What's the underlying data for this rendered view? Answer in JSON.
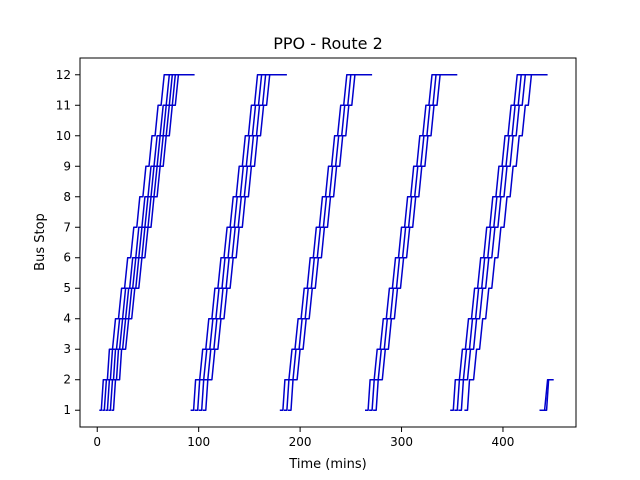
{
  "chart_data": {
    "type": "line",
    "title": "PPO - Route 2",
    "xlabel": "Time (mins)",
    "ylabel": "Bus Stop",
    "xlim": [
      -17,
      472
    ],
    "ylim": [
      0.45,
      12.55
    ],
    "xticks": [
      0,
      100,
      200,
      300,
      400
    ],
    "yticks": [
      1,
      2,
      3,
      4,
      5,
      6,
      7,
      8,
      9,
      10,
      11,
      12
    ],
    "grid": false,
    "legend": "none",
    "line_color": "#0000cc",
    "series": [
      {
        "x": [
          2,
          4,
          6,
          10,
          12,
          15,
          18,
          21,
          24,
          27,
          30,
          33,
          36,
          39,
          42,
          45,
          48,
          51,
          54,
          57,
          60,
          63,
          66,
          69,
          72,
          75,
          78,
          81,
          83
        ],
        "y": [
          1,
          1,
          2,
          2,
          3,
          3,
          4,
          4,
          5,
          5,
          6,
          6,
          7,
          7,
          8,
          8,
          9,
          9,
          10,
          10,
          11,
          11,
          12,
          12,
          12,
          12,
          12,
          12,
          12
        ]
      },
      {
        "x": [
          5,
          7,
          9,
          13,
          15,
          19,
          22,
          25,
          28,
          32,
          35,
          38,
          41,
          44,
          47,
          50,
          53,
          56,
          59,
          62,
          65,
          68,
          71,
          74,
          77,
          80,
          82,
          85,
          86
        ],
        "y": [
          1,
          1,
          2,
          2,
          3,
          3,
          4,
          4,
          5,
          5,
          6,
          6,
          7,
          7,
          8,
          8,
          9,
          9,
          10,
          10,
          11,
          11,
          12,
          12,
          12,
          12,
          12,
          12,
          12
        ]
      },
      {
        "x": [
          8,
          10,
          12,
          16,
          18,
          22,
          25,
          28,
          31,
          35,
          38,
          41,
          44,
          47,
          50,
          53,
          56,
          59,
          62,
          65,
          68,
          71,
          74,
          77,
          80,
          83,
          85,
          88,
          90
        ],
        "y": [
          1,
          1,
          2,
          2,
          3,
          3,
          4,
          4,
          5,
          5,
          6,
          6,
          7,
          7,
          8,
          8,
          9,
          9,
          10,
          10,
          11,
          11,
          12,
          12,
          12,
          12,
          12,
          12,
          12
        ]
      },
      {
        "x": [
          11,
          13,
          15,
          19,
          21,
          25,
          28,
          31,
          34,
          38,
          41,
          44,
          47,
          50,
          53,
          56,
          59,
          62,
          65,
          68,
          71,
          74,
          77,
          80,
          83,
          86,
          88,
          91,
          93
        ],
        "y": [
          1,
          1,
          2,
          2,
          3,
          3,
          4,
          4,
          5,
          5,
          6,
          6,
          7,
          7,
          8,
          8,
          9,
          9,
          10,
          10,
          11,
          11,
          12,
          12,
          12,
          12,
          12,
          12,
          12
        ]
      },
      {
        "x": [
          14,
          16,
          18,
          22,
          24,
          28,
          31,
          34,
          37,
          41,
          44,
          47,
          50,
          53,
          56,
          59,
          62,
          65,
          68,
          71,
          74,
          77,
          80,
          83,
          86,
          89,
          91,
          94,
          96
        ],
        "y": [
          1,
          1,
          2,
          2,
          3,
          3,
          4,
          4,
          5,
          5,
          6,
          6,
          7,
          7,
          8,
          8,
          9,
          9,
          10,
          10,
          11,
          11,
          12,
          12,
          12,
          12,
          12,
          12,
          12
        ]
      },
      {
        "x": [
          92,
          95,
          97,
          101,
          104,
          107,
          110,
          113,
          116,
          119,
          122,
          125,
          128,
          131,
          134,
          137,
          140,
          143,
          146,
          149,
          152,
          155,
          158,
          161,
          164,
          167,
          170,
          173,
          176
        ],
        "y": [
          1,
          1,
          2,
          2,
          3,
          3,
          4,
          4,
          5,
          5,
          6,
          6,
          7,
          7,
          8,
          8,
          9,
          9,
          10,
          10,
          11,
          11,
          12,
          12,
          12,
          12,
          12,
          12,
          12
        ]
      },
      {
        "x": [
          96,
          99,
          101,
          105,
          108,
          111,
          114,
          117,
          120,
          123,
          126,
          129,
          132,
          135,
          138,
          141,
          144,
          147,
          150,
          153,
          156,
          159,
          162,
          165,
          168,
          171,
          174,
          177,
          180
        ],
        "y": [
          1,
          1,
          2,
          2,
          3,
          3,
          4,
          4,
          5,
          5,
          6,
          6,
          7,
          7,
          8,
          8,
          9,
          9,
          10,
          10,
          11,
          11,
          12,
          12,
          12,
          12,
          12,
          12,
          12
        ]
      },
      {
        "x": [
          100,
          103,
          105,
          109,
          112,
          115,
          118,
          121,
          124,
          127,
          130,
          133,
          136,
          139,
          142,
          145,
          148,
          151,
          154,
          157,
          160,
          163,
          166,
          169,
          172,
          175,
          178,
          181,
          184
        ],
        "y": [
          1,
          1,
          2,
          2,
          3,
          3,
          4,
          4,
          5,
          5,
          6,
          6,
          7,
          7,
          8,
          8,
          9,
          9,
          10,
          10,
          11,
          11,
          12,
          12,
          12,
          12,
          12,
          12,
          12
        ]
      },
      {
        "x": [
          104,
          107,
          109,
          113,
          116,
          119,
          122,
          125,
          128,
          131,
          134,
          137,
          140,
          143,
          146,
          149,
          152,
          155,
          158,
          161,
          164,
          167,
          170,
          173,
          176,
          179,
          182,
          185,
          187
        ],
        "y": [
          1,
          1,
          2,
          2,
          3,
          3,
          4,
          4,
          5,
          5,
          6,
          6,
          7,
          7,
          8,
          8,
          9,
          9,
          10,
          10,
          11,
          11,
          12,
          12,
          12,
          12,
          12,
          12,
          12
        ]
      },
      {
        "x": [
          180,
          183,
          185,
          189,
          192,
          195,
          198,
          201,
          204,
          207,
          210,
          213,
          216,
          219,
          222,
          225,
          228,
          231,
          234,
          237,
          240,
          243,
          246,
          249,
          252,
          255,
          258,
          261,
          264
        ],
        "y": [
          1,
          1,
          2,
          2,
          3,
          3,
          4,
          4,
          5,
          5,
          6,
          6,
          7,
          7,
          8,
          8,
          9,
          9,
          10,
          10,
          11,
          11,
          12,
          12,
          12,
          12,
          12,
          12,
          12
        ]
      },
      {
        "x": [
          184,
          187,
          189,
          193,
          196,
          199,
          202,
          205,
          208,
          211,
          214,
          217,
          220,
          223,
          226,
          229,
          232,
          235,
          238,
          241,
          244,
          247,
          250,
          253,
          256,
          259,
          262,
          265,
          268
        ],
        "y": [
          1,
          1,
          2,
          2,
          3,
          3,
          4,
          4,
          5,
          5,
          6,
          6,
          7,
          7,
          8,
          8,
          9,
          9,
          10,
          10,
          11,
          11,
          12,
          12,
          12,
          12,
          12,
          12,
          12
        ]
      },
      {
        "x": [
          188,
          191,
          193,
          197,
          200,
          203,
          206,
          209,
          212,
          215,
          218,
          221,
          224,
          227,
          230,
          233,
          236,
          239,
          242,
          245,
          248,
          251,
          254,
          257,
          260,
          263,
          266,
          269,
          271
        ],
        "y": [
          1,
          1,
          2,
          2,
          3,
          3,
          4,
          4,
          5,
          5,
          6,
          6,
          7,
          7,
          8,
          8,
          9,
          9,
          10,
          10,
          11,
          11,
          12,
          12,
          12,
          12,
          12,
          12,
          12
        ]
      },
      {
        "x": [
          264,
          267,
          269,
          273,
          276,
          279,
          282,
          285,
          288,
          291,
          294,
          297,
          300,
          303,
          306,
          309,
          312,
          315,
          318,
          321,
          324,
          327,
          330,
          333,
          336,
          339,
          342,
          345,
          347
        ],
        "y": [
          1,
          1,
          2,
          2,
          3,
          3,
          4,
          4,
          5,
          5,
          6,
          6,
          7,
          7,
          8,
          8,
          9,
          9,
          10,
          10,
          11,
          11,
          12,
          12,
          12,
          12,
          12,
          12,
          12
        ]
      },
      {
        "x": [
          268,
          271,
          273,
          277,
          280,
          283,
          286,
          289,
          292,
          295,
          298,
          301,
          304,
          307,
          310,
          313,
          316,
          319,
          322,
          325,
          328,
          331,
          334,
          337,
          340,
          343,
          346,
          349,
          352
        ],
        "y": [
          1,
          1,
          2,
          2,
          3,
          3,
          4,
          4,
          5,
          5,
          6,
          6,
          7,
          7,
          8,
          8,
          9,
          9,
          10,
          10,
          11,
          11,
          12,
          12,
          12,
          12,
          12,
          12,
          12
        ]
      },
      {
        "x": [
          272,
          275,
          277,
          281,
          284,
          287,
          290,
          293,
          296,
          299,
          302,
          305,
          308,
          311,
          314,
          317,
          320,
          323,
          326,
          329,
          332,
          335,
          338,
          341,
          344,
          347,
          350,
          353,
          355
        ],
        "y": [
          1,
          1,
          2,
          2,
          3,
          3,
          4,
          4,
          5,
          5,
          6,
          6,
          7,
          7,
          8,
          8,
          9,
          9,
          10,
          10,
          11,
          11,
          12,
          12,
          12,
          12,
          12,
          12,
          12
        ]
      },
      {
        "x": [
          348,
          351,
          353,
          357,
          360,
          363,
          366,
          369,
          372,
          375,
          378,
          381,
          384,
          387,
          390,
          393,
          396,
          399,
          402,
          405,
          408,
          411,
          414,
          417,
          420,
          423,
          426,
          429,
          432
        ],
        "y": [
          1,
          1,
          2,
          2,
          3,
          3,
          4,
          4,
          5,
          5,
          6,
          6,
          7,
          7,
          8,
          8,
          9,
          9,
          10,
          10,
          11,
          11,
          12,
          12,
          12,
          12,
          12,
          12,
          12
        ]
      },
      {
        "x": [
          352,
          355,
          357,
          361,
          364,
          367,
          370,
          373,
          376,
          379,
          382,
          385,
          388,
          391,
          394,
          397,
          400,
          403,
          406,
          409,
          412,
          415,
          418,
          421,
          424,
          427,
          430,
          433,
          436
        ],
        "y": [
          1,
          1,
          2,
          2,
          3,
          3,
          4,
          4,
          5,
          5,
          6,
          6,
          7,
          7,
          8,
          8,
          9,
          9,
          10,
          10,
          11,
          11,
          12,
          12,
          12,
          12,
          12,
          12,
          12
        ]
      },
      {
        "x": [
          356,
          359,
          361,
          365,
          368,
          371,
          374,
          377,
          380,
          383,
          386,
          389,
          392,
          395,
          398,
          401,
          404,
          407,
          410,
          413,
          416,
          419,
          422,
          425,
          428,
          431,
          434,
          437,
          440
        ],
        "y": [
          1,
          1,
          2,
          2,
          3,
          3,
          4,
          4,
          5,
          5,
          6,
          6,
          7,
          7,
          8,
          8,
          9,
          9,
          10,
          10,
          11,
          11,
          12,
          12,
          12,
          12,
          12,
          12,
          12
        ]
      },
      {
        "x": [
          362,
          365,
          367,
          371,
          374,
          377,
          380,
          383,
          386,
          389,
          392,
          395,
          398,
          401,
          404,
          407,
          410,
          413,
          416,
          419,
          422,
          425,
          428,
          431,
          434,
          437,
          440,
          442,
          444
        ],
        "y": [
          1,
          1,
          2,
          2,
          3,
          3,
          4,
          4,
          5,
          5,
          6,
          6,
          7,
          7,
          8,
          8,
          9,
          9,
          10,
          10,
          11,
          11,
          12,
          12,
          12,
          12,
          12,
          12,
          12
        ]
      },
      {
        "x": [
          436,
          441,
          444,
          446,
          449
        ],
        "y": [
          1,
          1,
          2,
          2,
          2
        ]
      },
      {
        "x": [
          438,
          443,
          445,
          448,
          450
        ],
        "y": [
          1,
          1,
          2,
          2,
          2
        ]
      }
    ]
  }
}
